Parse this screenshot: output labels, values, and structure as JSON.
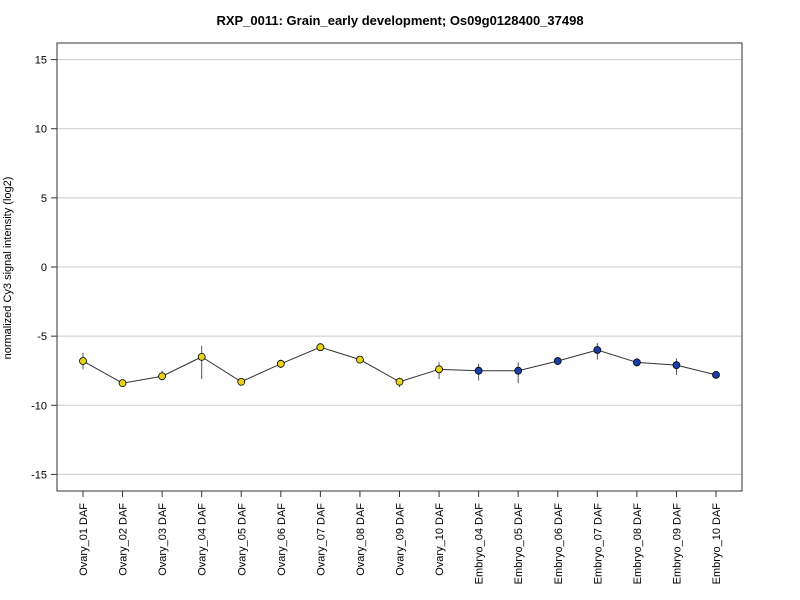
{
  "chart_data": {
    "type": "line",
    "title": "RXP_0011: Grain_early development; Os09g0128400_37498",
    "xlabel": "",
    "ylabel": "normalized Cy3 signal intensity (log2)",
    "ylim": [
      -16.2,
      16.2
    ],
    "yticks": [
      15,
      10,
      5,
      0,
      -5,
      -10,
      -15
    ],
    "grid": true,
    "categories": [
      "Ovary_01 DAF",
      "Ovary_02 DAF",
      "Ovary_03 DAF",
      "Ovary_04 DAF",
      "Ovary_05 DAF",
      "Ovary_06 DAF",
      "Ovary_07 DAF",
      "Ovary_08 DAF",
      "Ovary_09 DAF",
      "Ovary_10 DAF",
      "Embryo_04 DAF",
      "Embryo_05 DAF",
      "Embryo_06 DAF",
      "Embryo_07 DAF",
      "Embryo_08 DAF",
      "Embryo_09 DAF",
      "Embryo_10 DAF"
    ],
    "values": [
      -6.8,
      -8.4,
      -7.9,
      -6.5,
      -8.3,
      -7.0,
      -5.8,
      -6.7,
      -8.3,
      -7.4,
      -7.5,
      -7.5,
      -6.8,
      -6.0,
      -6.9,
      -7.1,
      -7.8
    ],
    "error_low": [
      -7.4,
      -8.6,
      -8.2,
      -8.1,
      -8.5,
      -7.3,
      -6.0,
      -6.9,
      -8.7,
      -8.1,
      -8.2,
      -8.4,
      -7.1,
      -6.7,
      -7.2,
      -7.8,
      -8.0
    ],
    "error_high": [
      -6.2,
      -8.2,
      -7.5,
      -5.7,
      -8.1,
      -6.7,
      -5.6,
      -6.5,
      -8.0,
      -6.9,
      -7.0,
      -6.9,
      -6.5,
      -5.5,
      -6.6,
      -6.6,
      -7.6
    ],
    "point_colors": [
      "#e6d31a",
      "#e6d31a",
      "#e6d31a",
      "#e6d31a",
      "#e6d31a",
      "#e6d31a",
      "#e6d31a",
      "#e6d31a",
      "#e6d31a",
      "#e6d31a",
      "#1a3fa6",
      "#1a3fa6",
      "#1a3fa6",
      "#1a3fa6",
      "#1a3fa6",
      "#1a3fa6",
      "#1a3fa6"
    ],
    "line_color": "#333333",
    "grid_color": "#cccccc"
  }
}
